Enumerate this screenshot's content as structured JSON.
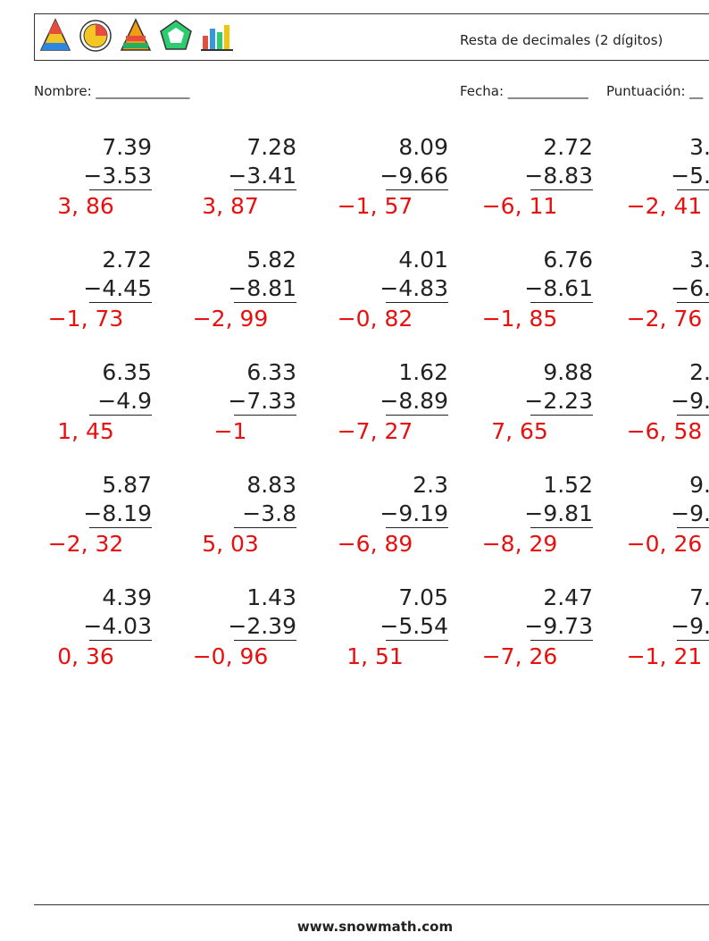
{
  "header": {
    "title": "Resta de decimales (2 dígitos)"
  },
  "fields": {
    "name": "Nombre: ______________",
    "date": "Fecha: ____________",
    "score": "Puntuación: __"
  },
  "problems": [
    [
      {
        "top": "7.39",
        "bottom": "−3.53",
        "answer": "3, 86"
      },
      {
        "top": "7.28",
        "bottom": "−3.41",
        "answer": "3, 87"
      },
      {
        "top": "8.09",
        "bottom": "−9.66",
        "answer": "−1, 57"
      },
      {
        "top": "2.72",
        "bottom": "−8.83",
        "answer": "−6, 11"
      },
      {
        "top": "3.",
        "bottom": "−5.",
        "answer": "−2, 41"
      }
    ],
    [
      {
        "top": "2.72",
        "bottom": "−4.45",
        "answer": "−1, 73"
      },
      {
        "top": "5.82",
        "bottom": "−8.81",
        "answer": "−2, 99"
      },
      {
        "top": "4.01",
        "bottom": "−4.83",
        "answer": "−0, 82"
      },
      {
        "top": "6.76",
        "bottom": "−8.61",
        "answer": "−1, 85"
      },
      {
        "top": "3.",
        "bottom": "−6.",
        "answer": "−2, 76"
      }
    ],
    [
      {
        "top": "6.35",
        "bottom": "−4.9",
        "answer": "1, 45"
      },
      {
        "top": "6.33",
        "bottom": "−7.33",
        "answer": "−1"
      },
      {
        "top": "1.62",
        "bottom": "−8.89",
        "answer": "−7, 27"
      },
      {
        "top": "9.88",
        "bottom": "−2.23",
        "answer": "7, 65"
      },
      {
        "top": "2.",
        "bottom": "−9.",
        "answer": "−6, 58"
      }
    ],
    [
      {
        "top": "5.87",
        "bottom": "−8.19",
        "answer": "−2, 32"
      },
      {
        "top": "8.83",
        "bottom": "−3.8",
        "answer": "5, 03"
      },
      {
        "top": "2.3",
        "bottom": "−9.19",
        "answer": "−6, 89"
      },
      {
        "top": "1.52",
        "bottom": "−9.81",
        "answer": "−8, 29"
      },
      {
        "top": "9.",
        "bottom": "−9.",
        "answer": "−0, 26"
      }
    ],
    [
      {
        "top": "4.39",
        "bottom": "−4.03",
        "answer": "0, 36"
      },
      {
        "top": "1.43",
        "bottom": "−2.39",
        "answer": "−0, 96"
      },
      {
        "top": "7.05",
        "bottom": "−5.54",
        "answer": "1, 51"
      },
      {
        "top": "2.47",
        "bottom": "−9.73",
        "answer": "−7, 26"
      },
      {
        "top": "7.",
        "bottom": "−9.",
        "answer": "−1, 21"
      }
    ]
  ],
  "footer": {
    "site": "www.snowmath.com"
  }
}
